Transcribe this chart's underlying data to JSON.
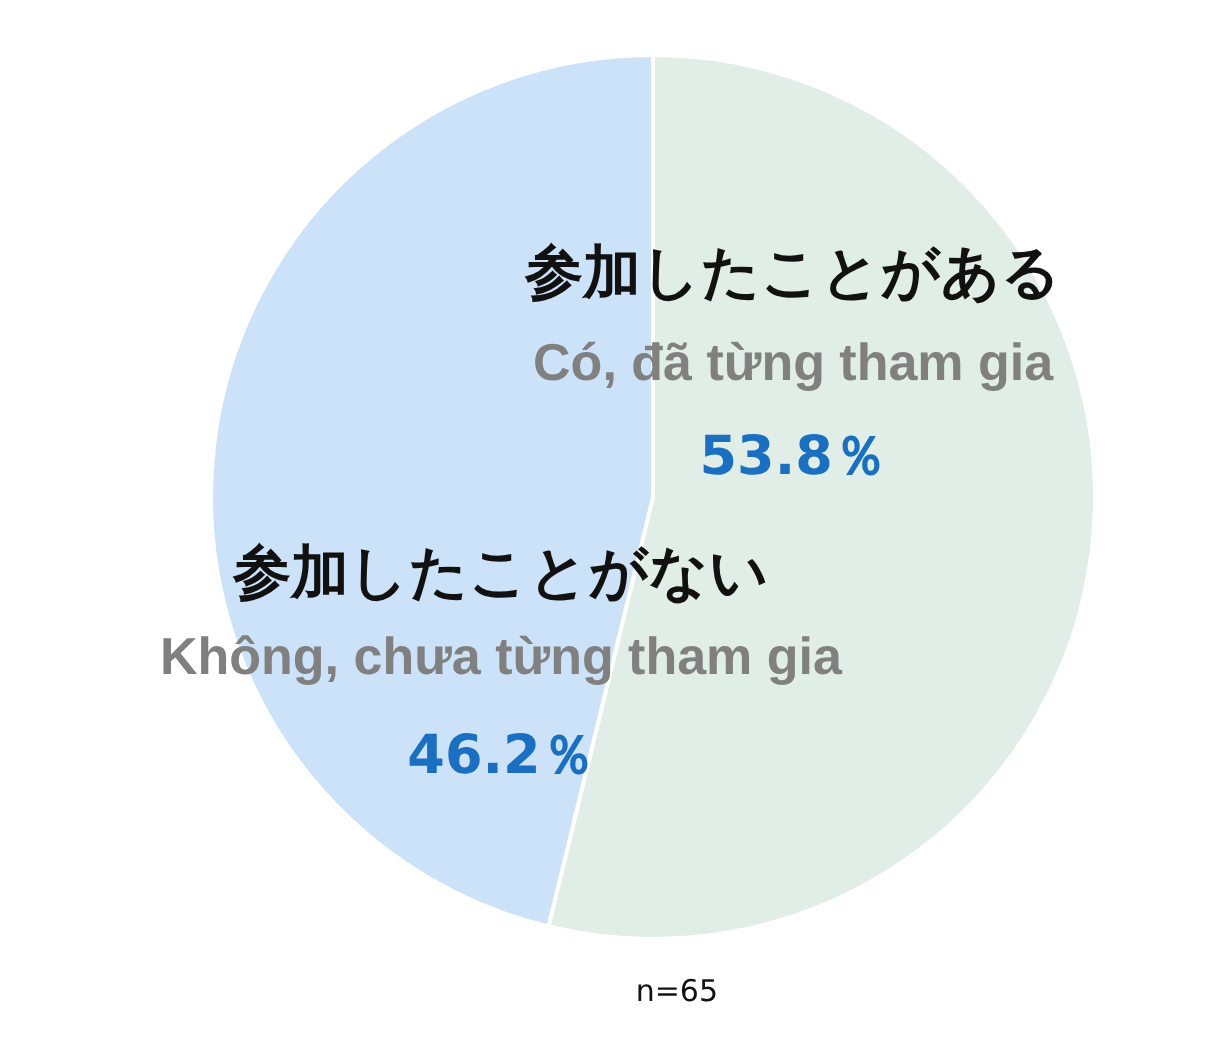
{
  "chart_data": {
    "type": "pie",
    "categories": [
      "参加したことがある",
      "参加したことがない"
    ],
    "values": [
      53.8,
      46.2
    ],
    "colors": [
      "#e0eee7",
      "#cce2f8"
    ],
    "value_labels": [
      "53.8％",
      "46.2％"
    ],
    "annotations": [
      "Có, đã từng tham gia",
      "Không, chưa từng tham gia",
      "n=65"
    ]
  }
}
